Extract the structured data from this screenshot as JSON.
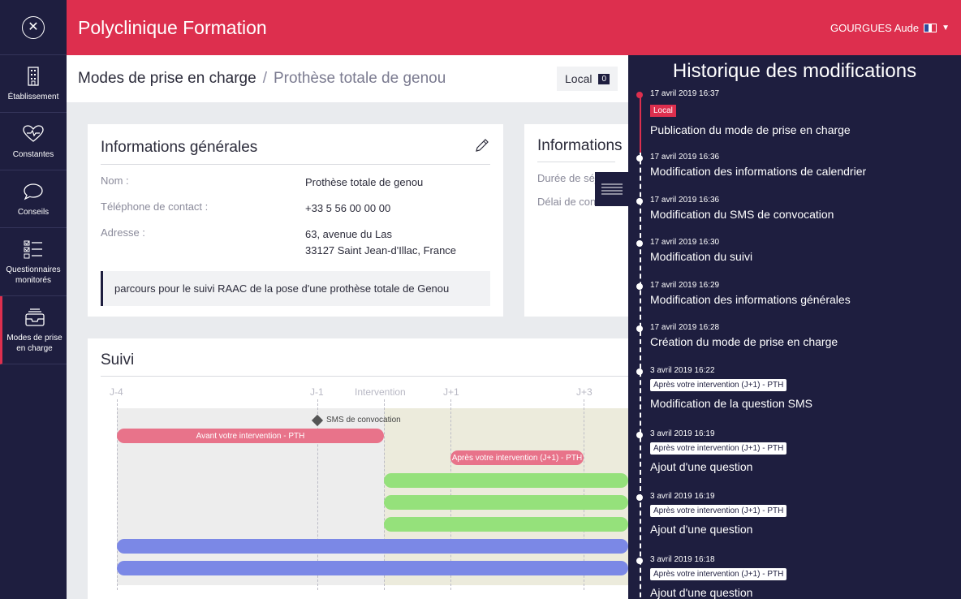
{
  "app": {
    "title": "Polyclinique Formation",
    "user": "GOURGUES Aude"
  },
  "sidebar": {
    "items": [
      {
        "label": "Établissement",
        "icon": "building-icon"
      },
      {
        "label": "Constantes",
        "icon": "heart-pulse-icon"
      },
      {
        "label": "Conseils",
        "icon": "speech-bubble-icon"
      },
      {
        "label": "Questionnaires monitorés",
        "icon": "checklist-icon"
      },
      {
        "label": "Modes de prise en charge",
        "icon": "inbox-tray-icon"
      }
    ]
  },
  "breadcrumb": {
    "main": "Modes de prise en charge",
    "sep": "/",
    "sub": "Prothèse totale de genou"
  },
  "local": {
    "label": "Local",
    "count": "0"
  },
  "info": {
    "title": "Informations générales",
    "rows": [
      {
        "k": "Nom :",
        "v": "Prothèse totale de genou"
      },
      {
        "k": "Téléphone de contact :",
        "v": "+33 5 56 00 00 00"
      },
      {
        "k": "Adresse :",
        "v1": "63, avenue du Las",
        "v2": "33127 Saint Jean-d'Illac, France"
      }
    ],
    "note": "parcours pour le suivi RAAC de la pose d'une prothèse totale de Genou"
  },
  "info2": {
    "title": "Informations",
    "rows": [
      "Durée de séjour",
      "Délai de convocation"
    ]
  },
  "suivi": {
    "title": "Suivi",
    "ticks": [
      "J-4",
      "J-1",
      "Intervention",
      "J+1",
      "J+3"
    ],
    "milestone": "SMS de convocation",
    "bars": [
      "Avant votre intervention - PTH",
      "Après votre intervention (J+1) - PTH"
    ]
  },
  "history": {
    "title": "Historique des modifications",
    "entries": [
      {
        "date": "17 avril 2019 16:37",
        "tag": "Local",
        "desc": "Publication du mode de prise en charge"
      },
      {
        "date": "17 avril 2019 16:36",
        "desc": "Modification des informations de calendrier"
      },
      {
        "date": "17 avril 2019 16:36",
        "desc": "Modification du SMS de convocation"
      },
      {
        "date": "17 avril 2019 16:30",
        "desc": "Modification du suivi"
      },
      {
        "date": "17 avril 2019 16:29",
        "desc": "Modification des informations générales"
      },
      {
        "date": "17 avril 2019 16:28",
        "desc": "Création du mode de prise en charge"
      },
      {
        "date": "3 avril 2019 16:22",
        "tag": "Après votre intervention (J+1) - PTH",
        "desc": "Modification de la question SMS"
      },
      {
        "date": "3 avril 2019 16:19",
        "tag": "Après votre intervention (J+1) - PTH",
        "desc": "Ajout d'une question"
      },
      {
        "date": "3 avril 2019 16:19",
        "tag": "Après votre intervention (J+1) - PTH",
        "desc": "Ajout d'une question"
      },
      {
        "date": "3 avril 2019 16:18",
        "tag": "Après votre intervention (J+1) - PTH",
        "desc": "Ajout d'une question"
      }
    ]
  }
}
